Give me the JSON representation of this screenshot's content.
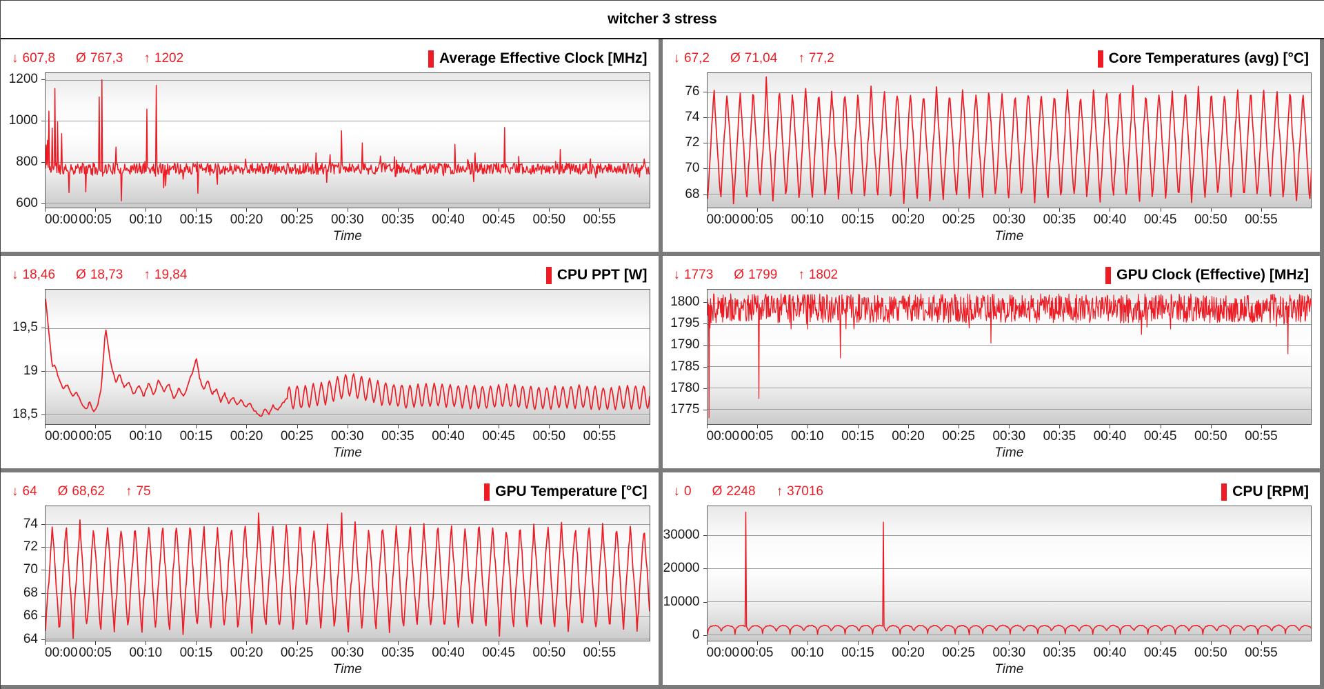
{
  "window": {
    "title": "witcher 3 stress"
  },
  "symbols": {
    "min": "↓",
    "avg": "Ø",
    "max": "↑"
  },
  "colors": {
    "series": "#ed1c24",
    "stats_text": "#ed1c24",
    "grid_line": "#9c9c9c",
    "plot_border": "#5c5c5c",
    "divider": "#7a7a7a",
    "title_text": "#000000"
  },
  "time_axis": {
    "label": "Time",
    "duration_s": 3600,
    "tick_interval_s": 300,
    "ticks": [
      "00:00",
      "00:05",
      "00:10",
      "00:15",
      "00:20",
      "00:25",
      "00:30",
      "00:35",
      "00:40",
      "00:45",
      "00:50",
      "00:55"
    ]
  },
  "chart_data": [
    {
      "type": "line",
      "title": "Average Effective Clock [MHz]",
      "stats": {
        "min": "607,8",
        "avg": "767,3",
        "max": "1202"
      },
      "unit": "MHz",
      "xlabel": "Time",
      "grid": "horizontal",
      "legend_position": "top-right",
      "ylim": [
        575,
        1235
      ],
      "yticks": [
        {
          "v": 600,
          "label": "600"
        },
        {
          "v": 800,
          "label": "800"
        },
        {
          "v": 1000,
          "label": "1000"
        },
        {
          "v": 1200,
          "label": "1200"
        }
      ],
      "series": {
        "mode": "noisy",
        "sample_s": 4,
        "seed": 11,
        "base": 766,
        "amp": 28,
        "burst": {
          "p": 0.07,
          "amp": 60
        },
        "clip": [
          618,
          1205
        ],
        "stroke_width": 1.5,
        "events": [
          [
            4,
            882
          ],
          [
            12,
            905
          ],
          [
            20,
            1048
          ],
          [
            40,
            965
          ],
          [
            56,
            1160
          ],
          [
            72,
            995
          ],
          [
            96,
            938
          ],
          [
            140,
            648
          ],
          [
            240,
            652
          ],
          [
            320,
            1118
          ],
          [
            336,
            1202
          ],
          [
            420,
            872
          ],
          [
            452,
            608
          ],
          [
            604,
            1058
          ],
          [
            660,
            1175
          ],
          [
            704,
            672
          ],
          [
            908,
            645
          ],
          [
            1764,
            952
          ],
          [
            1888,
            892
          ],
          [
            2440,
            885
          ],
          [
            2736,
            968
          ],
          [
            3068,
            860
          ]
        ]
      }
    },
    {
      "type": "line",
      "title": "Core Temperatures (avg) [°C]",
      "stats": {
        "min": "67,2",
        "avg": "71,04",
        "max": "77,2"
      },
      "unit": "°C",
      "xlabel": "Time",
      "grid": "horizontal",
      "legend_position": "top-right",
      "ylim": [
        66.9,
        77.5
      ],
      "yticks": [
        {
          "v": 68,
          "label": "68"
        },
        {
          "v": 70,
          "label": "70"
        },
        {
          "v": 72,
          "label": "72"
        },
        {
          "v": 74,
          "label": "74"
        },
        {
          "v": 76,
          "label": "76"
        }
      ],
      "series": {
        "mode": "osc",
        "sample_s": 5,
        "seed": 22,
        "lo": 67.5,
        "hi": 76.2,
        "period": 78,
        "jitter": 0.35,
        "stroke_width": 1.7,
        "events": [
          [
            351,
            77.2
          ],
          [
            156,
            67.2
          ],
          [
            2886,
            67.3
          ]
        ]
      }
    },
    {
      "type": "line",
      "title": "CPU PPT [W]",
      "stats": {
        "min": "18,46",
        "avg": "18,73",
        "max": "19,84"
      },
      "unit": "W",
      "xlabel": "Time",
      "grid": "horizontal",
      "legend_position": "top-right",
      "ylim": [
        18.38,
        19.95
      ],
      "yticks": [
        {
          "v": 18.5,
          "label": "18,5"
        },
        {
          "v": 19,
          "label": "19"
        },
        {
          "v": 19.5,
          "label": "19,5"
        }
      ],
      "series": {
        "mode": "anchored",
        "sample_s": 6,
        "seed": 33,
        "noise": 0.012,
        "stroke_width": 1.7,
        "ripple": {
          "from": 1440,
          "amp": 0.13,
          "period": 48
        },
        "anchors": [
          [
            0,
            19.84
          ],
          [
            18,
            19.5
          ],
          [
            40,
            19.05
          ],
          [
            58,
            19.06
          ],
          [
            80,
            18.9
          ],
          [
            105,
            18.8
          ],
          [
            130,
            18.84
          ],
          [
            160,
            18.7
          ],
          [
            185,
            18.75
          ],
          [
            215,
            18.62
          ],
          [
            245,
            18.55
          ],
          [
            262,
            18.64
          ],
          [
            285,
            18.52
          ],
          [
            310,
            18.6
          ],
          [
            332,
            18.8
          ],
          [
            358,
            19.5
          ],
          [
            378,
            19.22
          ],
          [
            398,
            19.0
          ],
          [
            420,
            18.88
          ],
          [
            442,
            18.96
          ],
          [
            468,
            18.8
          ],
          [
            495,
            18.88
          ],
          [
            525,
            18.72
          ],
          [
            555,
            18.84
          ],
          [
            585,
            18.7
          ],
          [
            615,
            18.86
          ],
          [
            645,
            18.72
          ],
          [
            675,
            18.9
          ],
          [
            705,
            18.76
          ],
          [
            735,
            18.85
          ],
          [
            765,
            18.67
          ],
          [
            795,
            18.8
          ],
          [
            825,
            18.7
          ],
          [
            855,
            18.88
          ],
          [
            882,
            19.02
          ],
          [
            900,
            19.15
          ],
          [
            918,
            18.92
          ],
          [
            942,
            18.78
          ],
          [
            968,
            18.9
          ],
          [
            992,
            18.72
          ],
          [
            1018,
            18.8
          ],
          [
            1042,
            18.64
          ],
          [
            1068,
            18.74
          ],
          [
            1092,
            18.62
          ],
          [
            1118,
            18.7
          ],
          [
            1142,
            18.6
          ],
          [
            1168,
            18.67
          ],
          [
            1192,
            18.57
          ],
          [
            1218,
            18.63
          ],
          [
            1242,
            18.54
          ],
          [
            1268,
            18.5
          ],
          [
            1286,
            18.46
          ],
          [
            1308,
            18.56
          ],
          [
            1332,
            18.5
          ],
          [
            1356,
            18.6
          ],
          [
            1382,
            18.54
          ],
          [
            1410,
            18.62
          ],
          [
            1440,
            18.68
          ],
          [
            1560,
            18.7
          ],
          [
            1680,
            18.75
          ],
          [
            1800,
            18.84
          ],
          [
            1900,
            18.8
          ],
          [
            2000,
            18.74
          ],
          [
            2150,
            18.7
          ],
          [
            2350,
            18.72
          ],
          [
            2550,
            18.69
          ],
          [
            2750,
            18.71
          ],
          [
            2950,
            18.68
          ],
          [
            3150,
            18.7
          ],
          [
            3350,
            18.68
          ],
          [
            3600,
            18.7
          ]
        ]
      }
    },
    {
      "type": "line",
      "title": "GPU Clock (Effective) [MHz]",
      "stats": {
        "min": "1773",
        "avg": "1799",
        "max": "1802"
      },
      "unit": "MHz",
      "xlabel": "Time",
      "grid": "horizontal",
      "legend_position": "top-right",
      "ylim": [
        1771.5,
        1803
      ],
      "yticks": [
        {
          "v": 1775,
          "label": "1775"
        },
        {
          "v": 1780,
          "label": "1780"
        },
        {
          "v": 1785,
          "label": "1785"
        },
        {
          "v": 1790,
          "label": "1790"
        },
        {
          "v": 1795,
          "label": "1795"
        },
        {
          "v": 1800,
          "label": "1800"
        }
      ],
      "series": {
        "mode": "noisy",
        "sample_s": 3,
        "seed": 44,
        "base": 1798.6,
        "amp": 3.4,
        "burst": {
          "p": 0.05,
          "amp": 3
        },
        "clip": [
          1793.8,
          1802
        ],
        "stroke_width": 1.2,
        "events": [
          [
            3,
            1797
          ],
          [
            9,
            1773
          ],
          [
            15,
            1794
          ],
          [
            306,
            1777.5
          ],
          [
            792,
            1787
          ],
          [
            1689,
            1790.5
          ],
          [
            2586,
            1792.5
          ],
          [
            3459,
            1788
          ]
        ]
      }
    },
    {
      "type": "line",
      "title": "GPU Temperature [°C]",
      "stats": {
        "min": "64",
        "avg": "68,62",
        "max": "75"
      },
      "unit": "°C",
      "xlabel": "Time",
      "grid": "horizontal",
      "legend_position": "top-right",
      "ylim": [
        63.8,
        75.6
      ],
      "yticks": [
        {
          "v": 64,
          "label": "64"
        },
        {
          "v": 66,
          "label": "66"
        },
        {
          "v": 68,
          "label": "68"
        },
        {
          "v": 70,
          "label": "70"
        },
        {
          "v": 72,
          "label": "72"
        },
        {
          "v": 74,
          "label": "74"
        }
      ],
      "series": {
        "mode": "osc",
        "sample_s": 5,
        "seed": 55,
        "lo": 64.7,
        "hi": 74.0,
        "period": 82,
        "jitter": 0.4,
        "stroke_width": 1.7,
        "events": [
          [
            164,
            64
          ],
          [
            1271,
            75
          ],
          [
            1763,
            75
          ],
          [
            2706,
            64.2
          ]
        ]
      }
    },
    {
      "type": "line",
      "title": "CPU [RPM]",
      "stats": {
        "min": "0",
        "avg": "2248",
        "max": "37016"
      },
      "unit": "RPM",
      "xlabel": "Time",
      "grid": "horizontal",
      "legend_position": "top-right",
      "ylim": [
        -1800,
        38800
      ],
      "yticks": [
        {
          "v": 0,
          "label": "0"
        },
        {
          "v": 10000,
          "label": "10000"
        },
        {
          "v": 20000,
          "label": "20000"
        },
        {
          "v": 30000,
          "label": "30000"
        }
      ],
      "series": {
        "mode": "arch",
        "sample_s": 4,
        "seed": 66,
        "lo": 250,
        "hi": 2800,
        "period": 82,
        "exp": 0.35,
        "jitter": 130,
        "stroke_width": 1.5,
        "events": [
          [
            226,
            37016
          ],
          [
            1046,
            34000
          ],
          [
            1558,
            0
          ]
        ]
      }
    }
  ]
}
